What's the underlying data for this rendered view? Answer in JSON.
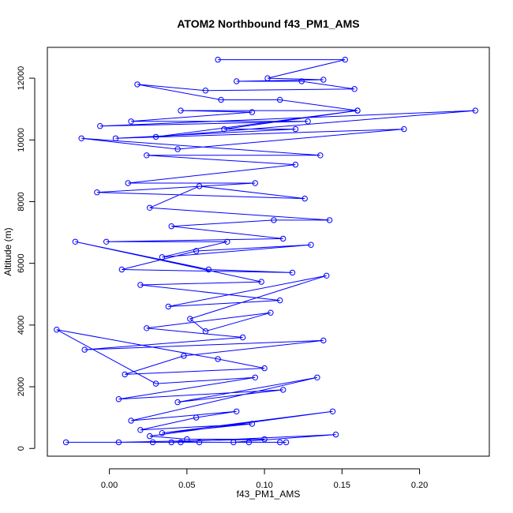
{
  "chart_data": {
    "type": "line",
    "title": "ATOM2 Northbound f43_PM1_AMS",
    "xlabel": "f43_PM1_AMS",
    "ylabel": "Altitude (m)",
    "xlim": [
      -0.04,
      0.245
    ],
    "ylim": [
      -250,
      13000
    ],
    "xticks": [
      0.0,
      0.05,
      0.1,
      0.15,
      0.2
    ],
    "xtick_labels": [
      "0.00",
      "0.05",
      "0.10",
      "0.15",
      "0.20"
    ],
    "yticks": [
      0,
      2000,
      4000,
      6000,
      8000,
      10000,
      12000
    ],
    "ytick_labels": [
      "0",
      "2000",
      "4000",
      "6000",
      "8000",
      "10000",
      "12000"
    ],
    "color": "#0000ff",
    "series": [
      {
        "markers": "open-circle",
        "x": [
          0.07,
          0.152,
          0.102,
          0.138,
          0.082,
          0.124,
          0.158,
          0.062,
          0.018,
          0.072,
          0.11,
          0.16,
          0.046,
          0.092,
          0.014,
          0.128,
          -0.006,
          0.236,
          0.03,
          0.16,
          0.074,
          0.12,
          0.004,
          0.19,
          0.044,
          -0.018,
          0.136,
          0.024,
          0.12,
          0.012,
          0.094,
          -0.008,
          0.126,
          0.058,
          0.026,
          0.142,
          0.106,
          0.04,
          0.112,
          -0.002,
          0.076,
          0.034,
          0.13,
          0.056,
          0.008,
          0.118,
          0.064,
          -0.022,
          0.098,
          0.02,
          0.11,
          0.038,
          0.14,
          0.052,
          0.062,
          0.104,
          0.024,
          0.086,
          -0.016,
          0.138,
          0.048,
          0.01,
          0.1,
          0.07,
          -0.034,
          0.03,
          0.094,
          0.006,
          0.112,
          0.044,
          0.134,
          0.014,
          0.082,
          0.056,
          0.02,
          0.092,
          0.034,
          0.144,
          0.026,
          0.05,
          0.1,
          0.006,
          0.08,
          0.146,
          0.04,
          0.114,
          -0.028,
          0.058,
          0.09,
          0.028,
          0.046,
          0.11
        ],
        "y": [
          12600,
          12600,
          12000,
          11950,
          11900,
          11900,
          11650,
          11600,
          11800,
          11300,
          11300,
          10950,
          10950,
          10900,
          10600,
          10600,
          10450,
          10950,
          10100,
          10950,
          10350,
          10350,
          10050,
          10350,
          9700,
          10050,
          9500,
          9500,
          9200,
          8600,
          8600,
          8300,
          8100,
          8500,
          7800,
          7400,
          7400,
          7200,
          6800,
          6700,
          6700,
          6200,
          6600,
          6400,
          5800,
          5700,
          5800,
          6700,
          5400,
          5300,
          4800,
          4600,
          5600,
          4200,
          3800,
          4400,
          3900,
          3600,
          3200,
          3500,
          3000,
          2400,
          2600,
          2900,
          3850,
          2100,
          2300,
          1600,
          1900,
          1500,
          2300,
          900,
          1200,
          1000,
          600,
          800,
          500,
          1200,
          400,
          300,
          300,
          200,
          200,
          450,
          200,
          200,
          200,
          200,
          200,
          200,
          200,
          200
        ]
      }
    ]
  }
}
